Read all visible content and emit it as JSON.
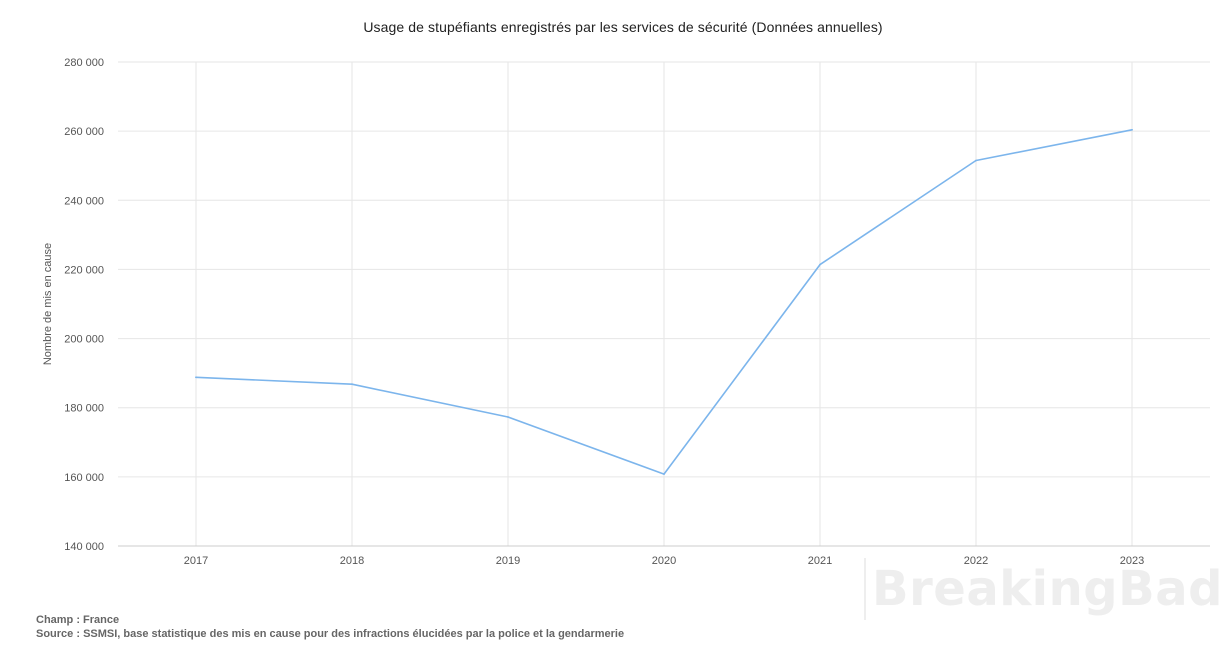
{
  "chart_data": {
    "type": "line",
    "title": "Usage de stupéfiants enregistrés par les services de sécurité (Données annuelles)",
    "xlabel": "",
    "ylabel": "Nombre de mis en cause",
    "categories": [
      "2017",
      "2018",
      "2019",
      "2020",
      "2021",
      "2022",
      "2023"
    ],
    "series": [
      {
        "values": [
          188800,
          186800,
          177300,
          160800,
          221400,
          251500,
          260400
        ],
        "color": "#7cb5ec"
      }
    ],
    "ylim": [
      140000,
      280000
    ],
    "yticks": [
      140000,
      160000,
      180000,
      200000,
      220000,
      240000,
      260000,
      280000
    ],
    "ytick_labels": [
      "140 000",
      "160 000",
      "180 000",
      "200 000",
      "220 000",
      "240 000",
      "260 000",
      "280 000"
    ],
    "grid": true,
    "legend": "none"
  },
  "footer": {
    "champ": "Champ : France",
    "source": "Source : SSMSI, base statistique des mis en cause pour des infractions élucidées par la police et la gendarmerie"
  },
  "watermark": "BreakingBad"
}
